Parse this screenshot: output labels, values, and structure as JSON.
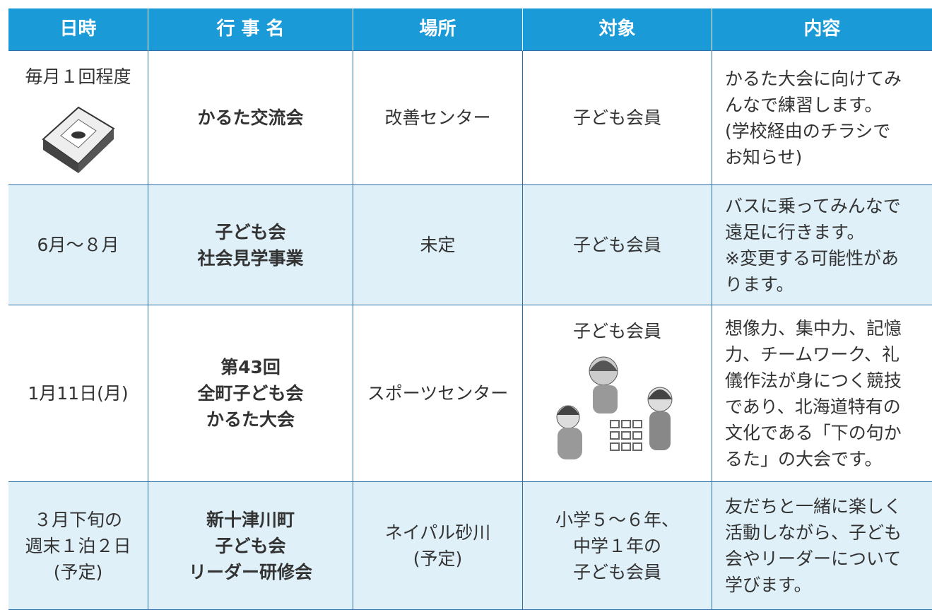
{
  "table": {
    "header": [
      "日時",
      "行 事 名",
      "場所",
      "対象",
      "内容"
    ],
    "rows": [
      [
        [
          "毎月１回程度"
        ],
        [
          "かるた交流会"
        ],
        [
          "改善センター"
        ],
        [
          "子ども会員"
        ],
        [
          "かるた大会に向けてみ",
          "んなで練習します。",
          "(学校経由のチラシで",
          "お知らせ)"
        ]
      ],
      [
        [
          "6月～８月"
        ],
        [
          "子ども会",
          "社会見学事業"
        ],
        [
          "未定"
        ],
        [
          "子ども会員"
        ],
        [
          "バスに乗ってみんなで",
          "遠足に行きます。",
          "※変更する可能性があ",
          "ります。"
        ]
      ],
      [
        [
          "1月11日(月)"
        ],
        [
          "第43回",
          "全町子ども会",
          "かるた大会"
        ],
        [
          "スポーツセンター"
        ],
        [
          "子ども会員"
        ],
        [
          "想像力、集中力、記憶",
          "力、チームワーク、礼",
          "儀作法が身につく競技",
          "であり、北海道特有の",
          "文化である「下の句か",
          "るた」の大会です。"
        ]
      ],
      [
        [
          "３月下旬の",
          "週末１泊２日",
          "(予定)"
        ],
        [
          "新十津川町",
          "子ども会",
          "リーダー研修会"
        ],
        [
          "ネイパル砂川",
          "(予定)"
        ],
        [
          "小学５～６年、",
          "中学１年の",
          "子ども会員"
        ],
        [
          "友だちと一緒に楽しく",
          "活動しながら、子ども",
          "会やリーダーについて",
          "学びます。"
        ]
      ]
    ]
  }
}
